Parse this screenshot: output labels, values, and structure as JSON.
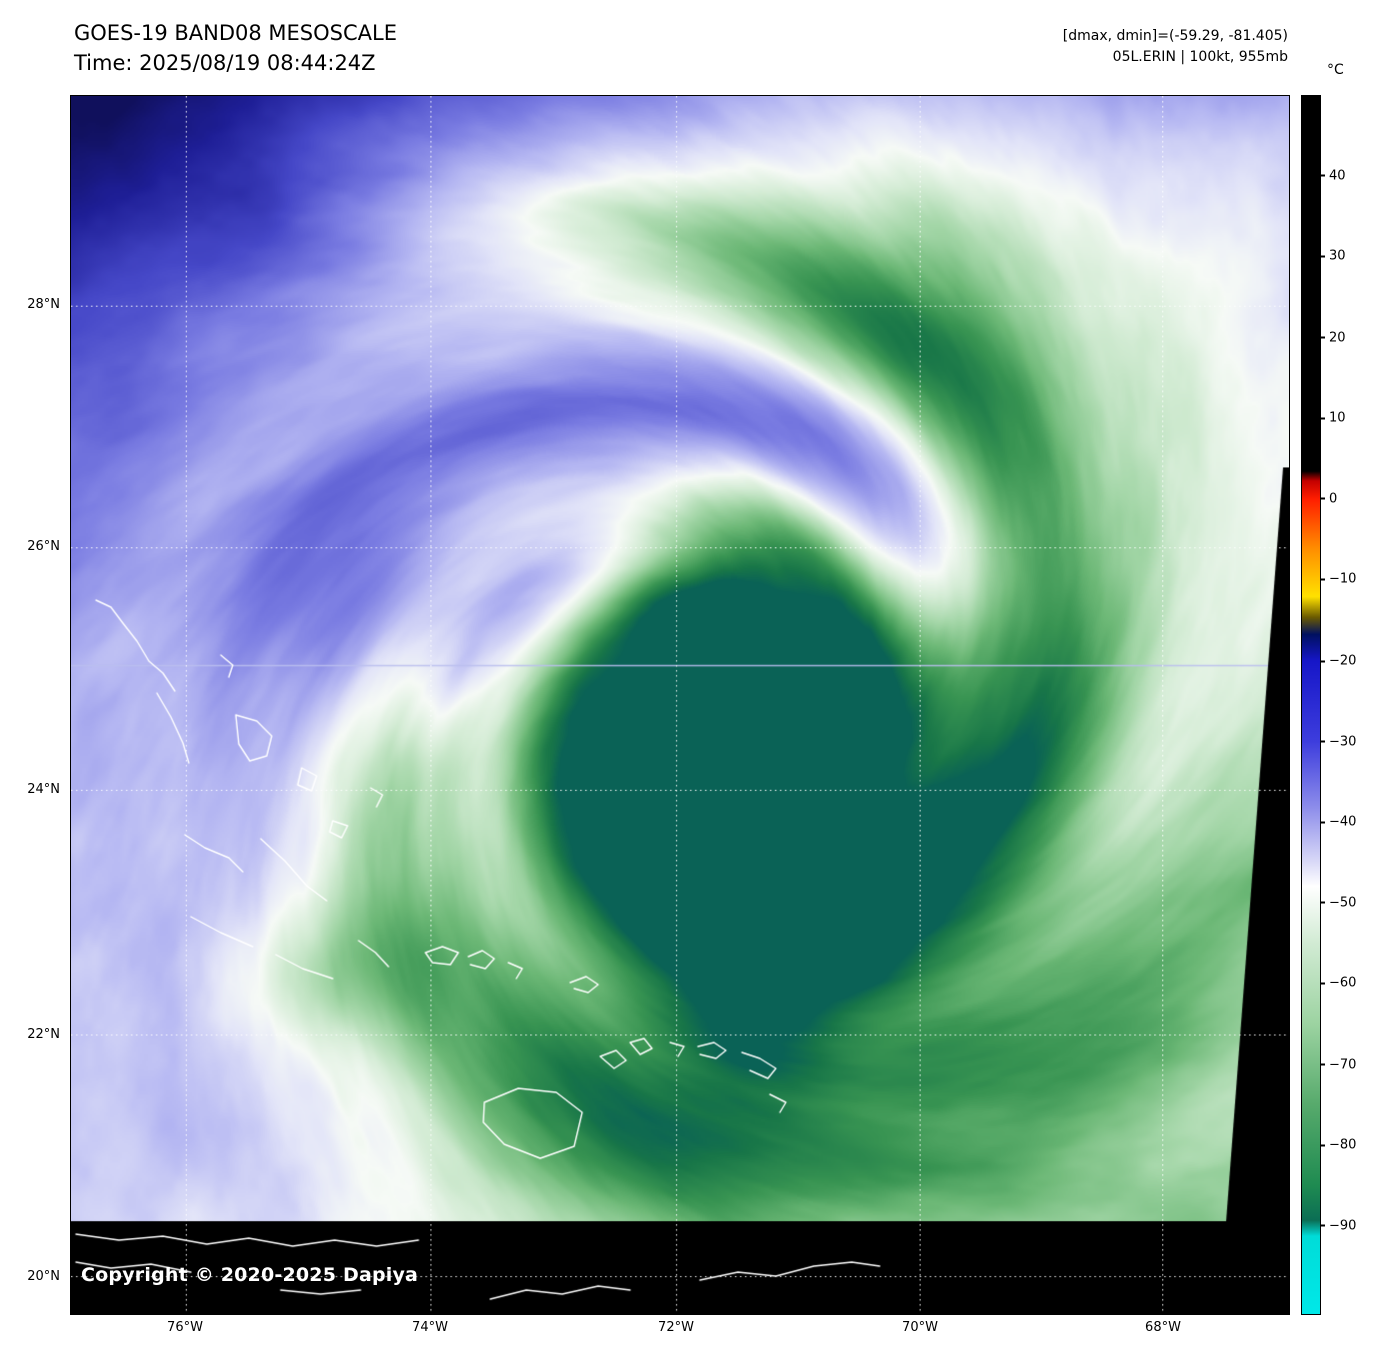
{
  "header": {
    "title": "GOES-19 BAND08 MESOSCALE",
    "time": "Time: 2025/08/19 08:44:24Z",
    "dmax_dmin": "[dmax, dmin]=(-59.29, -81.405)",
    "storm_info": "05L.ERIN | 100kt, 955mb"
  },
  "colorbar": {
    "unit": "°C",
    "ticks": [
      "40",
      "30",
      "20",
      "10",
      "0",
      "−10",
      "−20",
      "−30",
      "−40",
      "−50",
      "−60",
      "−70",
      "−80",
      "−90"
    ]
  },
  "axes": {
    "lat_labels": [
      "28°N",
      "26°N",
      "24°N",
      "22°N",
      "20°N"
    ],
    "lon_labels": [
      "76°W",
      "74°W",
      "72°W",
      "70°W",
      "68°W"
    ]
  },
  "footer": {
    "copyright": "Copyright © 2020-2025 Dapiya"
  },
  "colors": {
    "dry_air_navy": "#10105c",
    "mid_lavender": "#8c8ce6",
    "cloud_white": "#f6faf6",
    "cold_cloud_green": "#2a9055",
    "coldest_teal": "#0a6256",
    "coastline_white": "#ffffff",
    "gridline_white": "#ffffff",
    "mask_black": "#000000",
    "background": "#ffffff"
  }
}
